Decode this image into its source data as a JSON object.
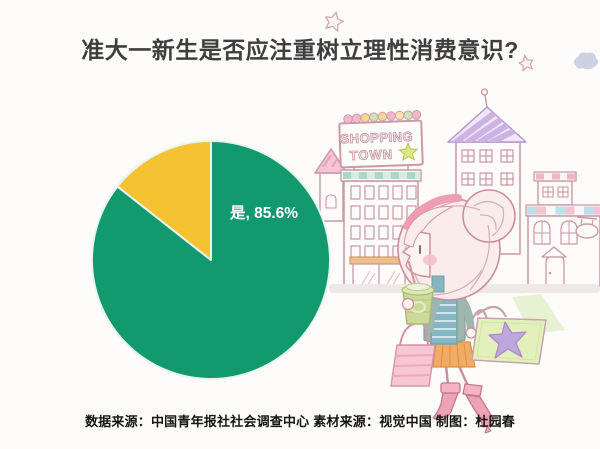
{
  "header": {
    "title": "准大一新生是否应注重树立理性消费意识?"
  },
  "chart_data": {
    "type": "pie",
    "title": "准大一新生是否应注重树立理性消费意识?",
    "unit": "%",
    "start_angle_deg": 0,
    "direction": "clockwise",
    "slices": [
      {
        "label": "是",
        "value": 85.6,
        "display": "是, 85.6%",
        "color": "#12996e",
        "label_color": "#ffffff"
      },
      {
        "label": "",
        "value": 14.4,
        "display": "",
        "color": "#f5c231",
        "label_color": ""
      }
    ],
    "slice_outline": "#e8f6ef",
    "legend": "none",
    "axes": "none"
  },
  "illustration": {
    "sign_line1": "SHOPPING",
    "sign_line2": "TOWN"
  },
  "footer": {
    "credits": "数据来源：中国青年报社社会调查中心 素材来源：视觉中国 制图：杜园春"
  },
  "colors": {
    "background": "#fdfcfa",
    "title_text": "#3e3e3e",
    "credits_text": "#151515",
    "pie_yes": "#12996e",
    "pie_other": "#f5c231"
  }
}
